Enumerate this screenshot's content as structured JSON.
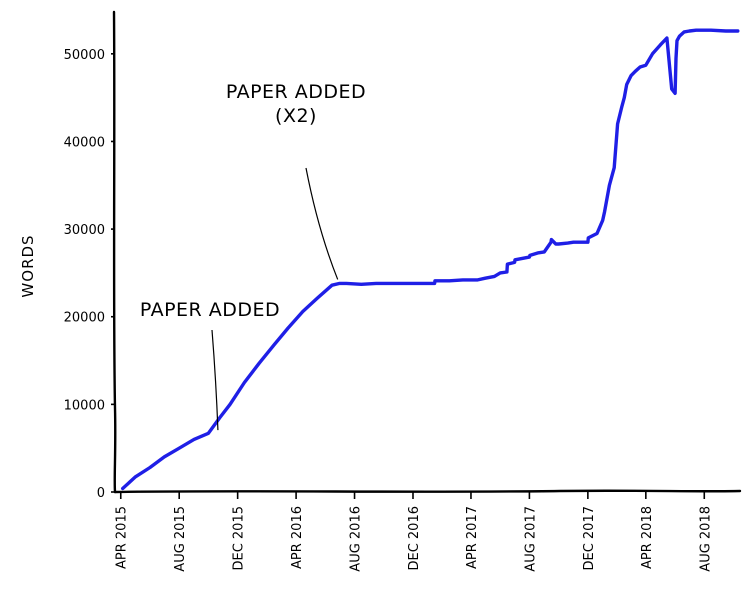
{
  "chart_data": {
    "type": "line",
    "title": "",
    "xlabel": "",
    "ylabel": "WORDS",
    "xlim": [
      "2015-03-20",
      "2018-10-25"
    ],
    "ylim": [
      0,
      55000
    ],
    "yticks": [
      0,
      10000,
      20000,
      30000,
      40000,
      50000
    ],
    "xticks": [
      {
        "date": "2015-04-01",
        "label": "APR 2015"
      },
      {
        "date": "2015-08-01",
        "label": "AUG 2015"
      },
      {
        "date": "2015-12-01",
        "label": "DEC 2015"
      },
      {
        "date": "2016-04-01",
        "label": "APR 2016"
      },
      {
        "date": "2016-08-01",
        "label": "AUG 2016"
      },
      {
        "date": "2016-12-01",
        "label": "DEC 2016"
      },
      {
        "date": "2017-04-01",
        "label": "APR 2017"
      },
      {
        "date": "2017-08-01",
        "label": "AUG 2017"
      },
      {
        "date": "2017-12-01",
        "label": "DEC 2017"
      },
      {
        "date": "2018-04-01",
        "label": "APR 2018"
      },
      {
        "date": "2018-08-01",
        "label": "AUG 2018"
      }
    ],
    "grid": false,
    "color": "#1f1fe6",
    "series": [
      {
        "x": [
          "2015-04-05",
          "2015-05-01",
          "2015-06-01",
          "2015-07-01",
          "2015-08-01",
          "2015-09-01",
          "2015-10-01",
          "2015-10-25",
          "2015-11-15",
          "2015-12-15",
          "2016-01-15",
          "2016-02-15",
          "2016-03-15",
          "2016-04-15",
          "2016-05-15",
          "2016-06-15",
          "2016-07-01",
          "2016-07-15",
          "2016-08-15",
          "2016-09-15",
          "2016-10-15",
          "2016-11-15",
          "2016-12-15",
          "2017-01-15",
          "2017-01-16",
          "2017-02-15",
          "2017-03-15",
          "2017-04-15",
          "2017-05-01",
          "2017-05-20",
          "2017-06-01",
          "2017-06-15",
          "2017-06-16",
          "2017-07-01",
          "2017-07-02",
          "2017-08-01",
          "2017-08-02",
          "2017-08-20",
          "2017-09-01",
          "2017-09-15",
          "2017-09-16",
          "2017-09-25",
          "2017-10-01",
          "2017-10-20",
          "2017-11-01",
          "2017-12-01",
          "2017-12-02",
          "2017-12-20",
          "2018-01-01",
          "2018-01-05",
          "2018-01-15",
          "2018-01-25",
          "2018-02-01",
          "2018-02-10",
          "2018-02-15",
          "2018-02-20",
          "2018-03-01",
          "2018-03-10",
          "2018-03-20",
          "2018-04-01",
          "2018-04-15",
          "2018-05-01",
          "2018-05-15",
          "2018-05-25",
          "2018-06-01",
          "2018-06-03",
          "2018-06-05",
          "2018-06-10",
          "2018-06-20",
          "2018-07-01",
          "2018-07-15",
          "2018-08-15",
          "2018-09-15",
          "2018-10-10"
        ],
        "values": [
          400,
          1700,
          2800,
          4000,
          5000,
          6000,
          6700,
          8500,
          10000,
          12500,
          14700,
          16800,
          18700,
          20600,
          22100,
          23600,
          23800,
          23800,
          23700,
          23800,
          23800,
          23800,
          23800,
          23800,
          24100,
          24100,
          24200,
          24200,
          24400,
          24600,
          25000,
          25100,
          26000,
          26200,
          26500,
          26800,
          27000,
          27300,
          27400,
          28500,
          28800,
          28300,
          28300,
          28400,
          28500,
          28500,
          29000,
          29500,
          31000,
          32000,
          35000,
          37000,
          42000,
          44000,
          45000,
          46500,
          47500,
          48000,
          48500,
          48700,
          50000,
          51000,
          51800,
          46000,
          45500,
          49500,
          51500,
          52000,
          52500,
          52600,
          52700,
          52700,
          52600,
          52600
        ]
      }
    ],
    "annotations": [
      {
        "lines": [
          "PAPER ADDED"
        ],
        "date": "2015-10-25",
        "value": 6600
      },
      {
        "lines": [
          "PAPER ADDED",
          "(X2)"
        ],
        "date": "2016-07-01",
        "value": 23800
      }
    ]
  }
}
